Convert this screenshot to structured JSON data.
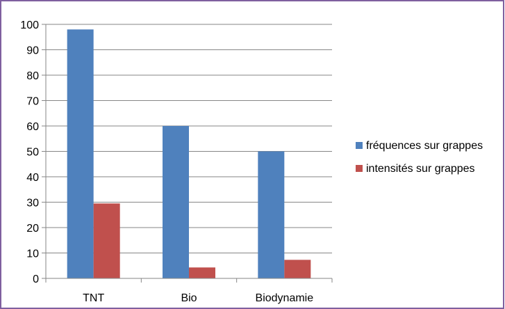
{
  "chart_data": {
    "type": "bar",
    "title": "",
    "xlabel": "",
    "ylabel": "",
    "categories": [
      "TNT",
      "Bio",
      "Biodynamie"
    ],
    "series": [
      {
        "name": "fréquences sur grappes",
        "values": [
          98,
          60,
          50
        ],
        "color": "#4f81bd"
      },
      {
        "name": "intensités sur grappes",
        "values": [
          29.5,
          4.3,
          7.3
        ],
        "color": "#c0504d"
      }
    ],
    "ylim": [
      0,
      100
    ],
    "yticks": [
      0,
      10,
      20,
      30,
      40,
      50,
      60,
      70,
      80,
      90,
      100
    ],
    "grid": true,
    "legend_position": "right"
  },
  "style": {
    "frame_color": "#7f5f9f",
    "grid_color": "#868686",
    "axis_color": "#868686"
  }
}
